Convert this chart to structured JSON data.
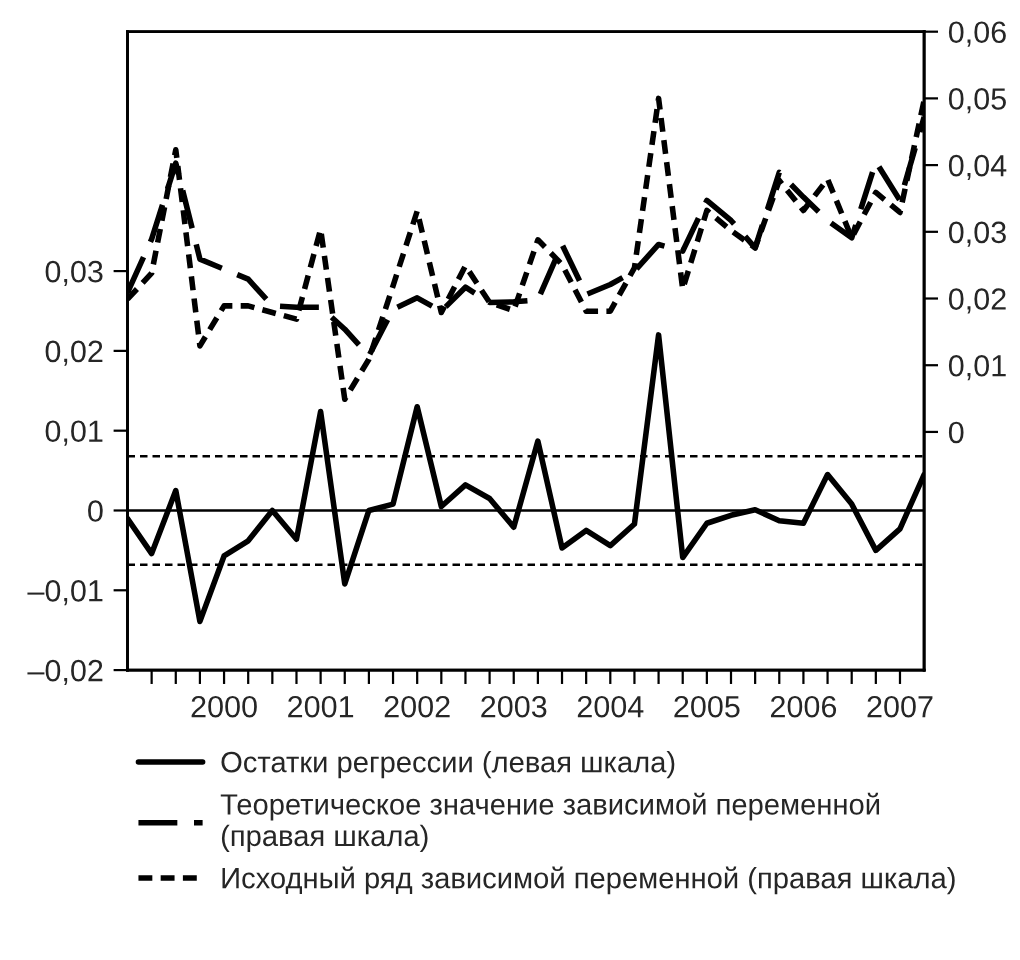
{
  "chart_data": {
    "type": "line",
    "x": [
      1999.5,
      1999.75,
      2000,
      2000.25,
      2000.5,
      2000.75,
      2001,
      2001.25,
      2001.5,
      2001.75,
      2002,
      2002.25,
      2002.5,
      2002.75,
      2003,
      2003.25,
      2003.5,
      2003.75,
      2004,
      2004.25,
      2004.5,
      2004.75,
      2005,
      2005.25,
      2005.5,
      2005.75,
      2006,
      2006.25,
      2006.5,
      2006.75,
      2007,
      2007.25,
      2007.5,
      2007.75
    ],
    "series": [
      {
        "name": "Остатки регрессии (левая шкала)",
        "color": "#000000",
        "line_style": "solid",
        "axis": "y",
        "values": [
          -0.001,
          -0.0054,
          0.0025,
          -0.0139,
          -0.0057,
          -0.0038,
          0.0,
          -0.0036,
          0.0124,
          -0.0092,
          0.0,
          0.0008,
          0.013,
          0.0005,
          0.0032,
          0.0015,
          -0.0021,
          0.0087,
          -0.0047,
          -0.0025,
          -0.0044,
          -0.0017,
          0.022,
          -0.0059,
          -0.0016,
          -0.0006,
          0.0001,
          -0.0013,
          -0.0016,
          0.0045,
          0.0008,
          -0.005,
          -0.0023,
          0.0045
        ]
      },
      {
        "name": "Теоретическое значение зависимой переменной\n(правая шкала)",
        "color": "#000000",
        "line_style": "dashed",
        "axis": "y2",
        "values": [
          0.0209,
          0.0289,
          0.0403,
          0.0259,
          0.0244,
          0.0229,
          0.0189,
          0.0187,
          0.0187,
          0.0154,
          0.0114,
          0.0184,
          0.0201,
          0.0181,
          0.0217,
          0.0194,
          0.0195,
          0.0198,
          0.0281,
          0.0206,
          0.0221,
          0.0241,
          0.0281,
          0.0271,
          0.0347,
          0.0317,
          0.0276,
          0.0389,
          0.0352,
          0.0317,
          0.0291,
          0.0405,
          0.0347,
          0.0472
        ]
      },
      {
        "name": "Исходный ряд зависимой переменной (правая шкала)",
        "color": "#000000",
        "line_style": "dotted",
        "axis": "y2",
        "values": [
          0.0199,
          0.0238,
          0.0423,
          0.0129,
          0.0189,
          0.0189,
          0.0179,
          0.0169,
          0.0304,
          0.0049,
          0.0109,
          0.0219,
          0.0331,
          0.0179,
          0.0249,
          0.0194,
          0.0182,
          0.0288,
          0.0251,
          0.0181,
          0.0181,
          0.0246,
          0.05,
          0.0214,
          0.0332,
          0.0302,
          0.0276,
          0.0377,
          0.0332,
          0.0379,
          0.0291,
          0.0359,
          0.0329,
          0.0497
        ]
      }
    ],
    "xlim": [
      1999.5,
      2007.75
    ],
    "xticks": [
      {
        "value": 1999.75,
        "label": null
      },
      {
        "value": 2000,
        "label": null
      },
      {
        "value": 2000.25,
        "label": null
      },
      {
        "value": 2000.5,
        "label": "2000"
      },
      {
        "value": 2000.75,
        "label": null
      },
      {
        "value": 2001,
        "label": null
      },
      {
        "value": 2001.25,
        "label": null
      },
      {
        "value": 2001.5,
        "label": "2001"
      },
      {
        "value": 2001.75,
        "label": null
      },
      {
        "value": 2002,
        "label": null
      },
      {
        "value": 2002.25,
        "label": null
      },
      {
        "value": 2002.5,
        "label": "2002"
      },
      {
        "value": 2002.75,
        "label": null
      },
      {
        "value": 2003,
        "label": null
      },
      {
        "value": 2003.25,
        "label": null
      },
      {
        "value": 2003.5,
        "label": "2003"
      },
      {
        "value": 2003.75,
        "label": null
      },
      {
        "value": 2004,
        "label": null
      },
      {
        "value": 2004.25,
        "label": null
      },
      {
        "value": 2004.5,
        "label": "2004"
      },
      {
        "value": 2004.75,
        "label": null
      },
      {
        "value": 2005,
        "label": null
      },
      {
        "value": 2005.25,
        "label": null
      },
      {
        "value": 2005.5,
        "label": "2005"
      },
      {
        "value": 2005.75,
        "label": null
      },
      {
        "value": 2006,
        "label": null
      },
      {
        "value": 2006.25,
        "label": null
      },
      {
        "value": 2006.5,
        "label": "2006"
      },
      {
        "value": 2006.75,
        "label": null
      },
      {
        "value": 2007,
        "label": null
      },
      {
        "value": 2007.25,
        "label": null
      },
      {
        "value": 2007.5,
        "label": "2007"
      }
    ],
    "ylim": [
      -0.02,
      0.06
    ],
    "yticks": [
      {
        "value": -0.02,
        "label": "–0,02"
      },
      {
        "value": -0.01,
        "label": "–0,01"
      },
      {
        "value": 0,
        "label": "0"
      },
      {
        "value": 0.01,
        "label": "0,01"
      },
      {
        "value": 0.02,
        "label": "0,02"
      },
      {
        "value": 0.03,
        "label": "0,03"
      }
    ],
    "y2lim": [
      -0.0357,
      0.06
    ],
    "y2ticks": [
      {
        "value": 0,
        "label": "0"
      },
      {
        "value": 0.01,
        "label": "0,01"
      },
      {
        "value": 0.02,
        "label": "0,02"
      },
      {
        "value": 0.03,
        "label": "0,03"
      },
      {
        "value": 0.04,
        "label": "0,04"
      },
      {
        "value": 0.05,
        "label": "0,05"
      },
      {
        "value": 0.06,
        "label": "0,06"
      }
    ],
    "ref_lines": [
      {
        "axis": "y",
        "value": 0,
        "color": "#000000",
        "line_style": "solid"
      },
      {
        "axis": "y",
        "value": 0.0068,
        "color": "#000000",
        "line_style": "dashed"
      },
      {
        "axis": "y",
        "value": -0.0068,
        "color": "#000000",
        "line_style": "dashed"
      }
    ],
    "grid": false,
    "legend": "bottom",
    "marker": "none"
  }
}
